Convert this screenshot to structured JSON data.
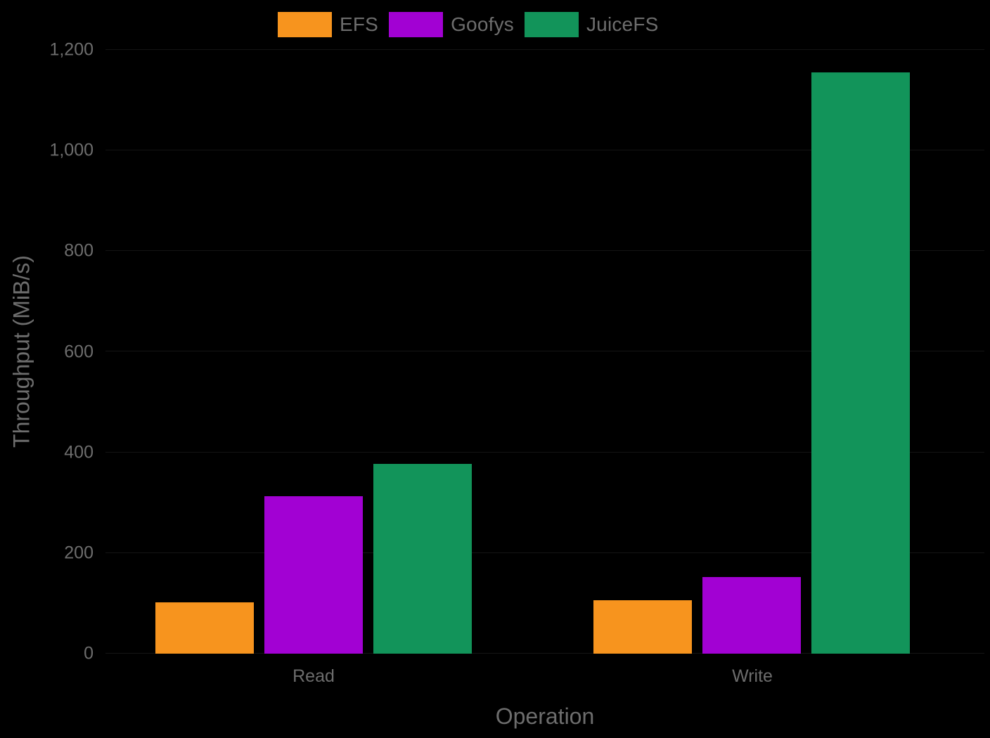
{
  "chart_data": {
    "type": "bar",
    "title": "",
    "xlabel": "Operation",
    "ylabel": "Throughput (MiB/s)",
    "categories": [
      "Read",
      "Write"
    ],
    "series": [
      {
        "name": "EFS",
        "color": "#F7941E",
        "values": [
          102,
          106
        ]
      },
      {
        "name": "Goofys",
        "color": "#A201D3",
        "values": [
          313,
          152
        ]
      },
      {
        "name": "JuiceFS",
        "color": "#12945A",
        "values": [
          377,
          1155
        ]
      }
    ],
    "ylim": [
      0,
      1200
    ],
    "yticks": [
      0,
      200,
      400,
      600,
      800,
      1000,
      1200
    ],
    "ytick_labels": [
      "0",
      "200",
      "400",
      "600",
      "800",
      "1,000",
      "1,200"
    ],
    "grid": "horizontal-faint",
    "legend_position": "top-center",
    "background_color": "#000000",
    "text_color": "#6D6D6D"
  }
}
